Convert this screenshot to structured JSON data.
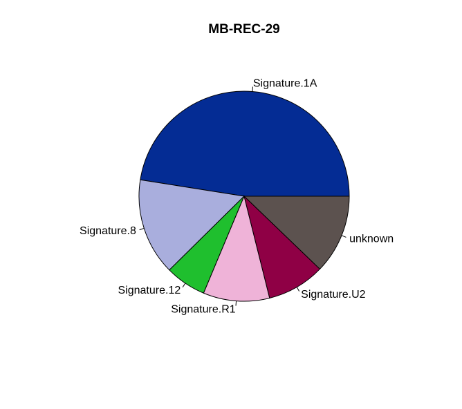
{
  "chart_data": {
    "type": "pie",
    "title": "MB-REC-29",
    "start_angle_deg": 0,
    "direction": "counterclockwise",
    "slices": [
      {
        "label": "Signature.1A",
        "value": 47.5,
        "color": "#042C94"
      },
      {
        "label": "Signature.8",
        "value": 14.9,
        "color": "#A9AEDD"
      },
      {
        "label": "Signature.12",
        "value": 6.3,
        "color": "#1FBF2E"
      },
      {
        "label": "Signature.R1",
        "value": 10.2,
        "color": "#EFB3D8"
      },
      {
        "label": "Signature.U2",
        "value": 8.9,
        "color": "#8F0045"
      },
      {
        "label": "unknown",
        "value": 12.2,
        "color": "#5C524F"
      }
    ]
  }
}
